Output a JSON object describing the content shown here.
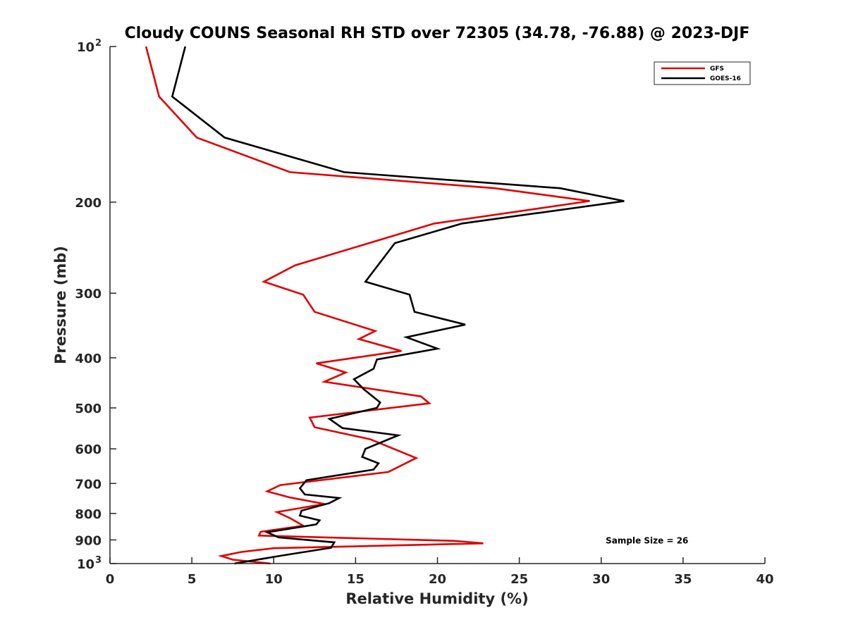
{
  "chart_data": {
    "type": "line",
    "title": "Cloudy COUNS Seasonal RH STD over 72305 (34.78, -76.88) @ 2023-DJF",
    "xlabel": "Relative Humidity (%)",
    "ylabel": "Pressure (mb)",
    "xlim": [
      0,
      40
    ],
    "ylim": [
      1000,
      100
    ],
    "yscale": "log",
    "xticks": [
      "0",
      "5",
      "10",
      "15",
      "20",
      "25",
      "30",
      "35",
      "40"
    ],
    "yticks": [
      {
        "value": 100,
        "base": "10",
        "exp": "2"
      },
      {
        "value": 200,
        "base": "200",
        "exp": ""
      },
      {
        "value": 300,
        "base": "300",
        "exp": ""
      },
      {
        "value": 400,
        "base": "400",
        "exp": ""
      },
      {
        "value": 500,
        "base": "500",
        "exp": ""
      },
      {
        "value": 600,
        "base": "600",
        "exp": ""
      },
      {
        "value": 700,
        "base": "700",
        "exp": ""
      },
      {
        "value": 800,
        "base": "800",
        "exp": ""
      },
      {
        "value": 900,
        "base": "900",
        "exp": ""
      },
      {
        "value": 1000,
        "base": "10",
        "exp": "3"
      }
    ],
    "legend_position": "top-right",
    "series": [
      {
        "name": "GFS",
        "color": "#e00000",
        "points": [
          [
            2.2,
            100
          ],
          [
            3.0,
            125
          ],
          [
            5.3,
            150
          ],
          [
            11.0,
            175
          ],
          [
            23.5,
            188
          ],
          [
            29.3,
            199
          ],
          [
            19.8,
            220
          ],
          [
            11.3,
            265
          ],
          [
            9.4,
            285
          ],
          [
            11.8,
            302
          ],
          [
            12.5,
            326
          ],
          [
            16.2,
            355
          ],
          [
            15.2,
            368
          ],
          [
            17.8,
            388
          ],
          [
            12.6,
            410
          ],
          [
            14.4,
            427
          ],
          [
            13.1,
            445
          ],
          [
            19.0,
            475
          ],
          [
            19.5,
            490
          ],
          [
            12.2,
            522
          ],
          [
            12.5,
            545
          ],
          [
            15.9,
            575
          ],
          [
            18.7,
            625
          ],
          [
            17.0,
            665
          ],
          [
            10.4,
            705
          ],
          [
            9.6,
            725
          ],
          [
            11.0,
            745
          ],
          [
            13.1,
            767
          ],
          [
            10.2,
            795
          ],
          [
            11.0,
            817
          ],
          [
            11.8,
            845
          ],
          [
            9.2,
            868
          ],
          [
            9.1,
            883
          ],
          [
            21.0,
            904
          ],
          [
            22.8,
            914
          ],
          [
            10.0,
            934
          ],
          [
            8.0,
            950
          ],
          [
            6.8,
            967
          ],
          [
            7.5,
            983
          ],
          [
            9.8,
            1000
          ]
        ]
      },
      {
        "name": "GOES-16",
        "color": "#000000",
        "points": [
          [
            4.6,
            100
          ],
          [
            3.8,
            125
          ],
          [
            7.0,
            150
          ],
          [
            14.3,
            175
          ],
          [
            27.5,
            188
          ],
          [
            31.4,
            199
          ],
          [
            21.5,
            220
          ],
          [
            17.4,
            240
          ],
          [
            15.6,
            285
          ],
          [
            18.3,
            302
          ],
          [
            18.6,
            326
          ],
          [
            21.7,
            345
          ],
          [
            18.1,
            365
          ],
          [
            20.0,
            384
          ],
          [
            16.3,
            403
          ],
          [
            16.1,
            420
          ],
          [
            14.9,
            440
          ],
          [
            15.5,
            460
          ],
          [
            16.5,
            488
          ],
          [
            16.3,
            500
          ],
          [
            13.4,
            525
          ],
          [
            14.2,
            547
          ],
          [
            17.6,
            565
          ],
          [
            15.6,
            600
          ],
          [
            15.4,
            622
          ],
          [
            16.4,
            640
          ],
          [
            16.1,
            658
          ],
          [
            12.0,
            690
          ],
          [
            11.6,
            715
          ],
          [
            11.9,
            735
          ],
          [
            14.0,
            747
          ],
          [
            13.4,
            764
          ],
          [
            11.7,
            790
          ],
          [
            11.6,
            808
          ],
          [
            12.8,
            825
          ],
          [
            12.6,
            840
          ],
          [
            9.6,
            870
          ],
          [
            10.3,
            890
          ],
          [
            13.7,
            910
          ],
          [
            13.5,
            932
          ],
          [
            10.5,
            965
          ],
          [
            7.6,
            1000
          ]
        ]
      }
    ],
    "annotations": [
      {
        "text": "Sample Size = 26",
        "x": 32.8,
        "y": 900
      }
    ]
  }
}
